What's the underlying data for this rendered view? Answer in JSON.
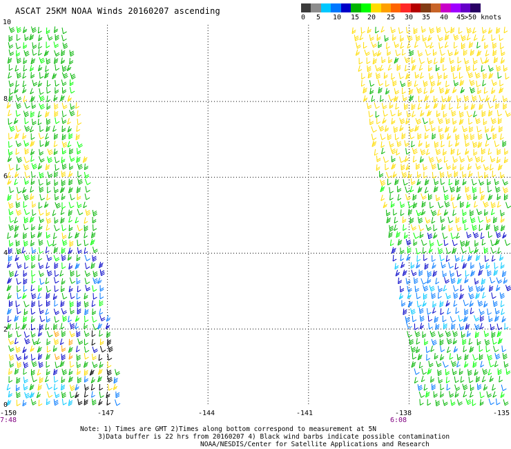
{
  "title": "ASCAT 25KM NOAA Winds 20160207 ascending",
  "legend": {
    "colors": [
      "#3c3c3c",
      "#8c8c8c",
      "#00c8ff",
      "#0078ff",
      "#0000c8",
      "#00b400",
      "#00ff00",
      "#ffdc00",
      "#ffa000",
      "#ff6400",
      "#ff2828",
      "#b40000",
      "#823c14",
      "#c86428",
      "#c800c8",
      "#a000ff",
      "#6400c8",
      "#280064"
    ],
    "labels": [
      "0",
      "5",
      "10",
      "15",
      "20",
      "25",
      "30",
      "35",
      "40",
      "45",
      ">50 knots"
    ],
    "unit": ""
  },
  "map": {
    "lat_labels": [
      "10",
      "8",
      "6",
      "4",
      "2",
      "0"
    ],
    "lon_labels": [
      "-150",
      "-147",
      "-144",
      "-141",
      "-138",
      "-135"
    ],
    "start_time": "7:48",
    "end_time": "6:08",
    "grid_color": "#000000"
  },
  "notes": {
    "line1": "Note: 1) Times are GMT 2)Times along bottom correspond to measurement at 5N",
    "line2": "3)Data buffer is 22 hrs from 20160207 4) Black wind barbs indicate possible contamination",
    "line3": "NOAA/NESDIS/Center for Satellite Applications and Research"
  }
}
